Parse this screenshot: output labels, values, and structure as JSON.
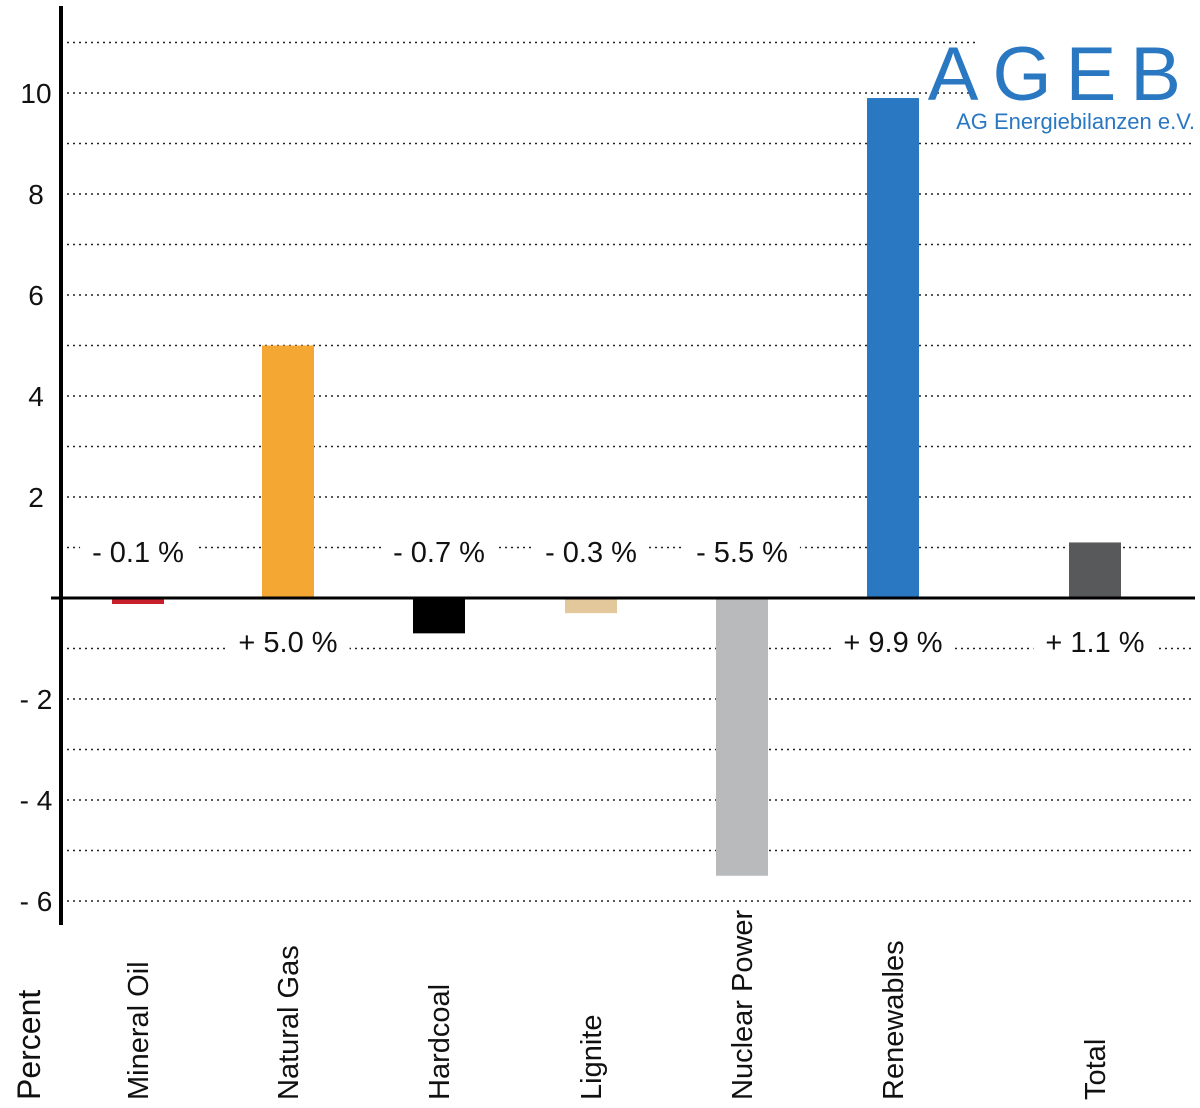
{
  "logo": {
    "name": "AGEB",
    "subtitle": "AG Energiebilanzen e.V.",
    "color": "#2a78c2"
  },
  "chart_data": {
    "type": "bar",
    "categories": [
      "Mineral Oil",
      "Natural Gas",
      "Hardcoal",
      "Lignite",
      "Nuclear Power",
      "Renewables",
      "Total"
    ],
    "values": [
      -0.1,
      5.0,
      -0.7,
      -0.3,
      -5.5,
      9.9,
      1.1
    ],
    "value_labels": [
      "- 0.1 %",
      "+ 5.0 %",
      "- 0.7 %",
      "- 0.3 %",
      "- 5.5 %",
      "+ 9.9 %",
      "+ 1.1 %"
    ],
    "colors": [
      "#c8202a",
      "#f5a733",
      "#000000",
      "#e3c89b",
      "#b9babc",
      "#2a78c2",
      "#58595b"
    ],
    "ylabel": "Percent",
    "xlabel": "",
    "title": "",
    "ylim": [
      -6,
      11
    ],
    "yticks": [
      10,
      8,
      6,
      4,
      2,
      -2,
      -4,
      -6
    ],
    "ytick_labels": [
      "10",
      "8",
      "6",
      "4",
      "2",
      "- 2",
      "- 4",
      "- 6"
    ],
    "grid": "dotted, every 1 unit",
    "legend": "none"
  }
}
